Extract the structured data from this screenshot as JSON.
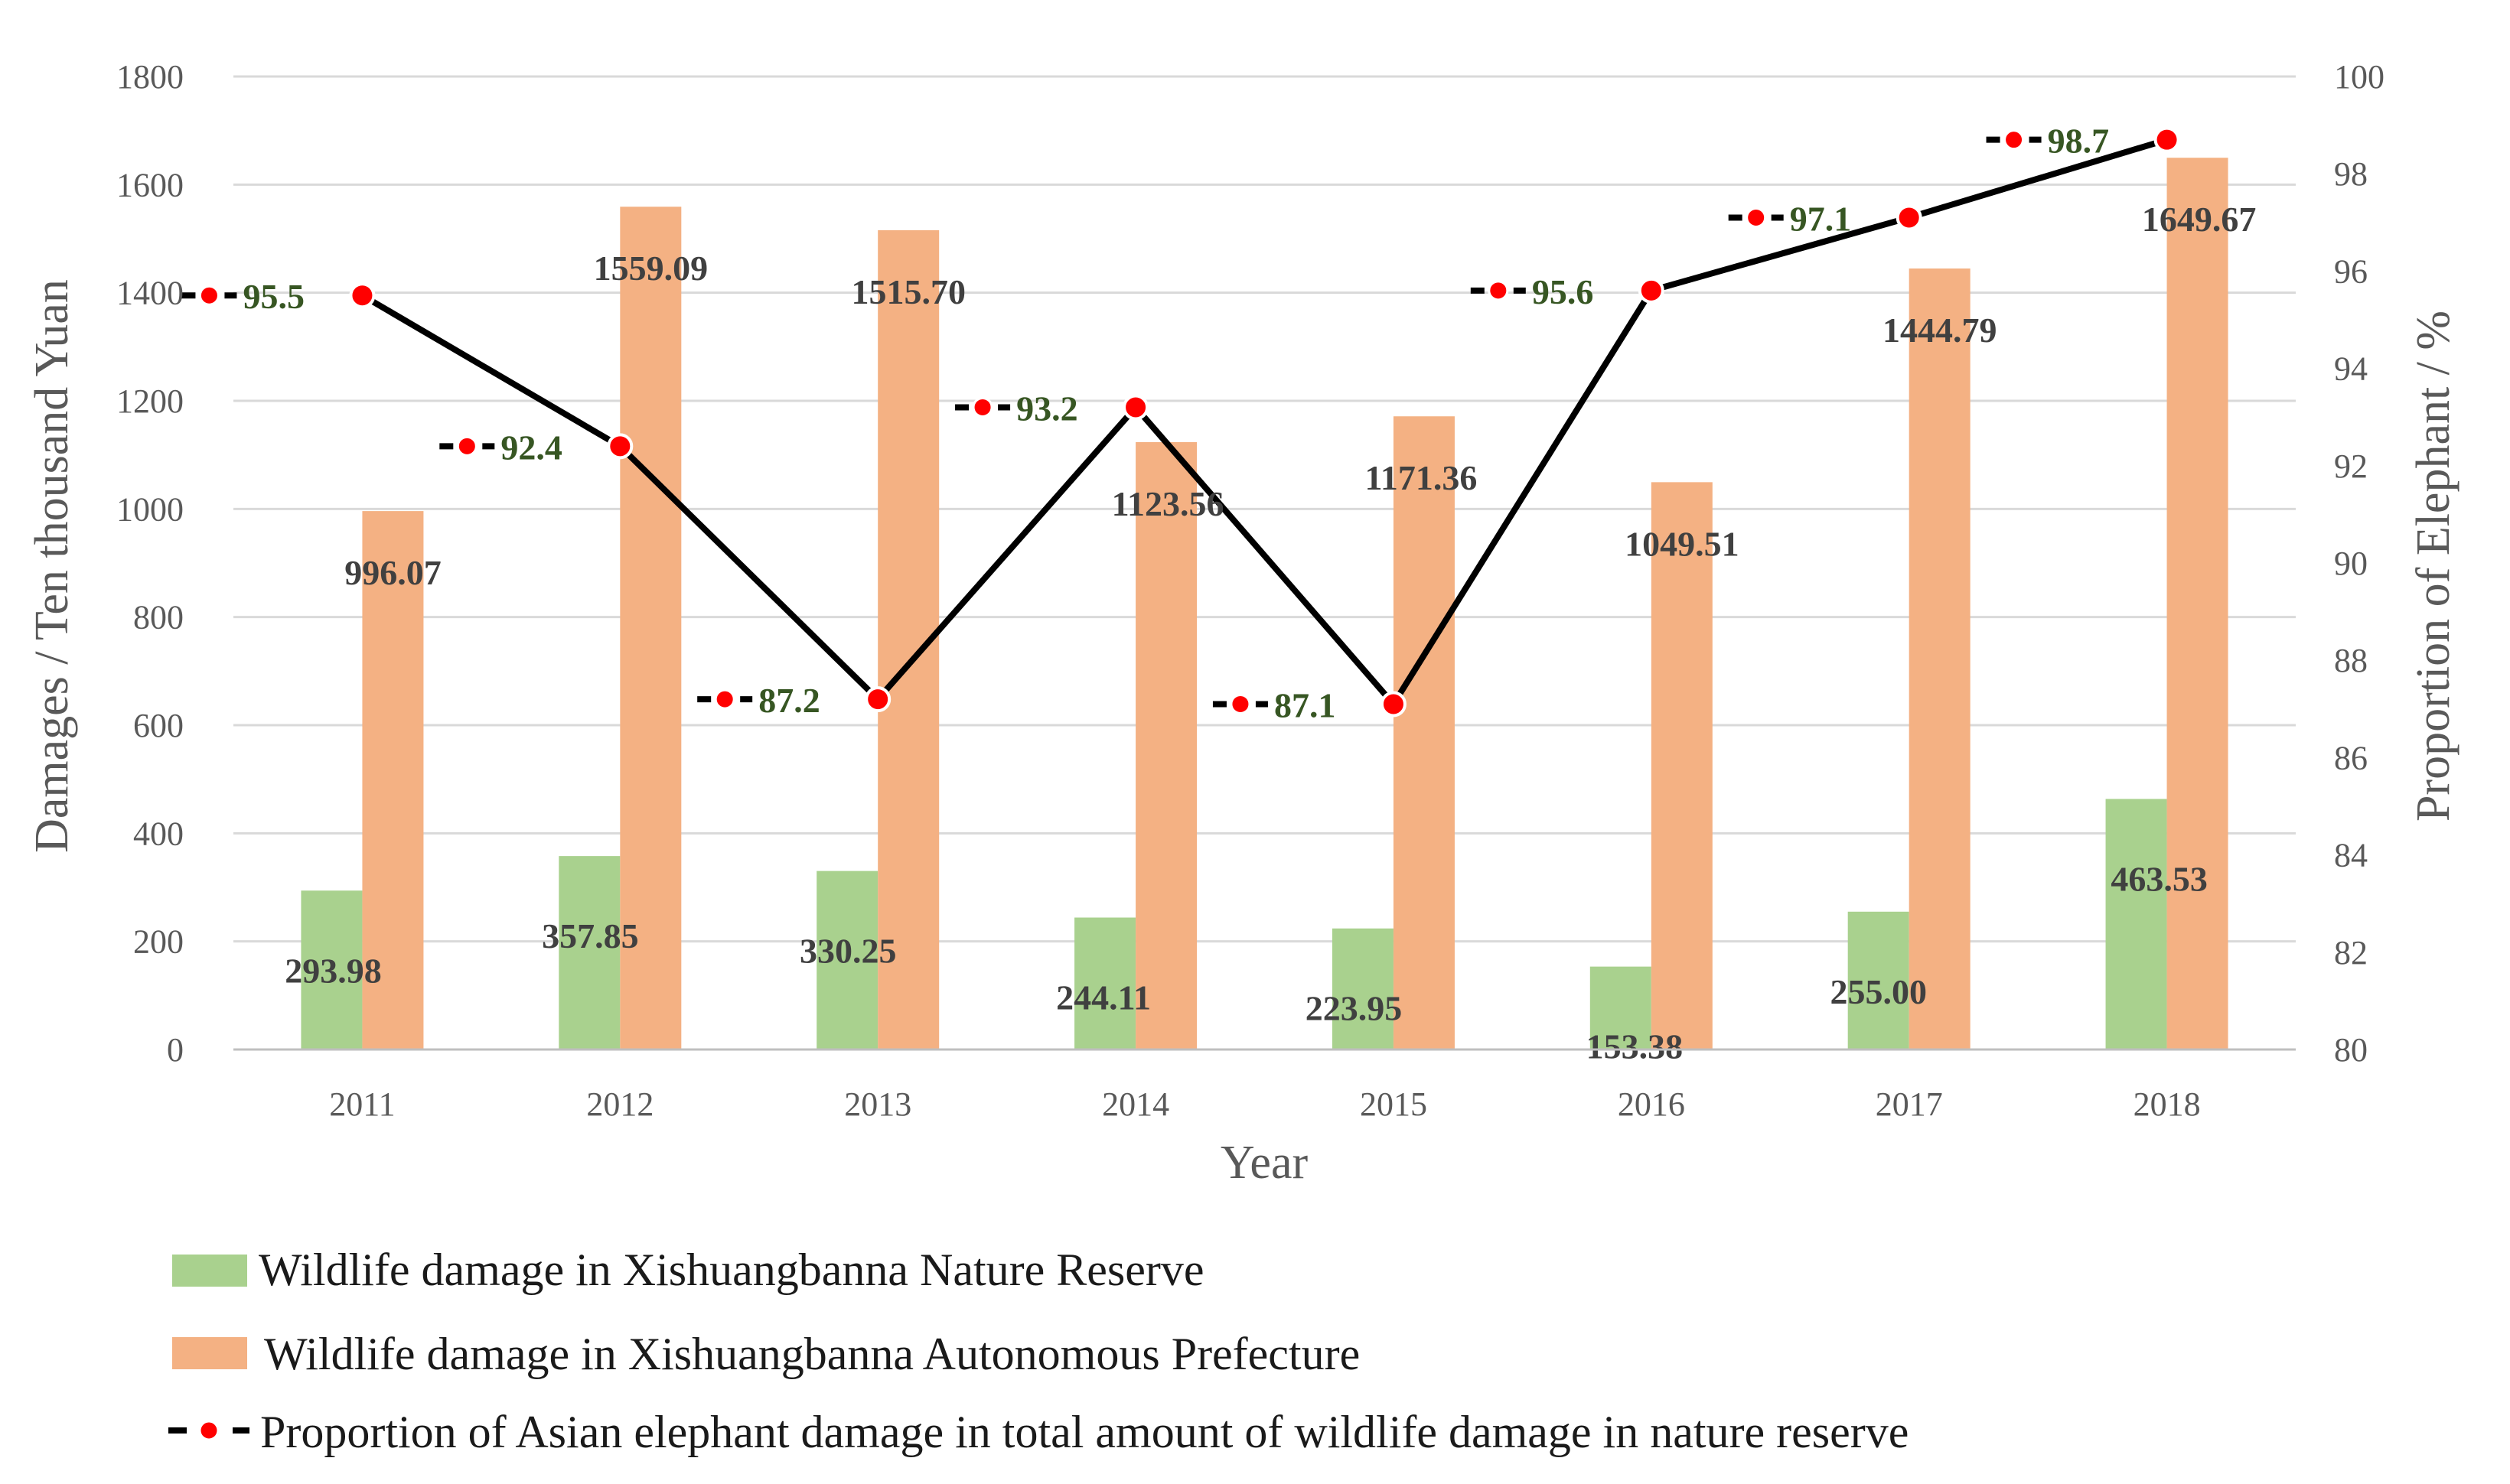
{
  "chart_data": {
    "type": "bar+line",
    "categories": [
      "2011",
      "2012",
      "2013",
      "2014",
      "2015",
      "2016",
      "2017",
      "2018"
    ],
    "series": [
      {
        "name": "Wildlife damage in Xishuangbanna Nature Reserve",
        "kind": "bar",
        "axis": "left",
        "color": "#a9d18e",
        "values": [
          293.98,
          357.85,
          330.25,
          244.11,
          223.95,
          153.38,
          255.0,
          463.53
        ],
        "labels": [
          "293.98",
          "357.85",
          "330.25",
          "244.11",
          "223.95",
          "153.38",
          "255.00",
          "463.53"
        ]
      },
      {
        "name": "Wildlife damage in Xishuangbanna Autonomous Prefecture",
        "kind": "bar",
        "axis": "left",
        "color": "#f4b183",
        "values": [
          996.07,
          1559.09,
          1515.7,
          1123.56,
          1171.36,
          1049.51,
          1444.79,
          1649.67
        ],
        "labels": [
          "996.07",
          "1559.09",
          "1515.70",
          "1123.56",
          "1171.36",
          "1049.51",
          "1444.79",
          "1649.67"
        ]
      },
      {
        "name": "Proportion of Asian elephant damage in total amount of wildlife damage in nature reserve",
        "kind": "line",
        "axis": "right",
        "color": "#000000",
        "marker_color": "#ff0000",
        "values": [
          95.5,
          92.4,
          87.2,
          93.2,
          87.1,
          95.6,
          97.1,
          98.7
        ],
        "labels": [
          "95.5",
          "92.4",
          "87.2",
          "93.2",
          "87.1",
          "95.6",
          "97.1",
          "98.7"
        ]
      }
    ],
    "y_left": {
      "label": "Damages / Ten thousand Yuan",
      "range": [
        0,
        1800
      ],
      "ticks": [
        "0",
        "200",
        "400",
        "600",
        "800",
        "1000",
        "1200",
        "1400",
        "1600",
        "1800"
      ]
    },
    "y_right": {
      "label": "Proportion of Elephant / %",
      "range": [
        80,
        100
      ],
      "ticks": [
        "80",
        "82",
        "84",
        "86",
        "88",
        "90",
        "92",
        "94",
        "96",
        "98",
        "100"
      ]
    },
    "xlabel": "Year",
    "grid": true,
    "legend_position": "bottom-left"
  }
}
